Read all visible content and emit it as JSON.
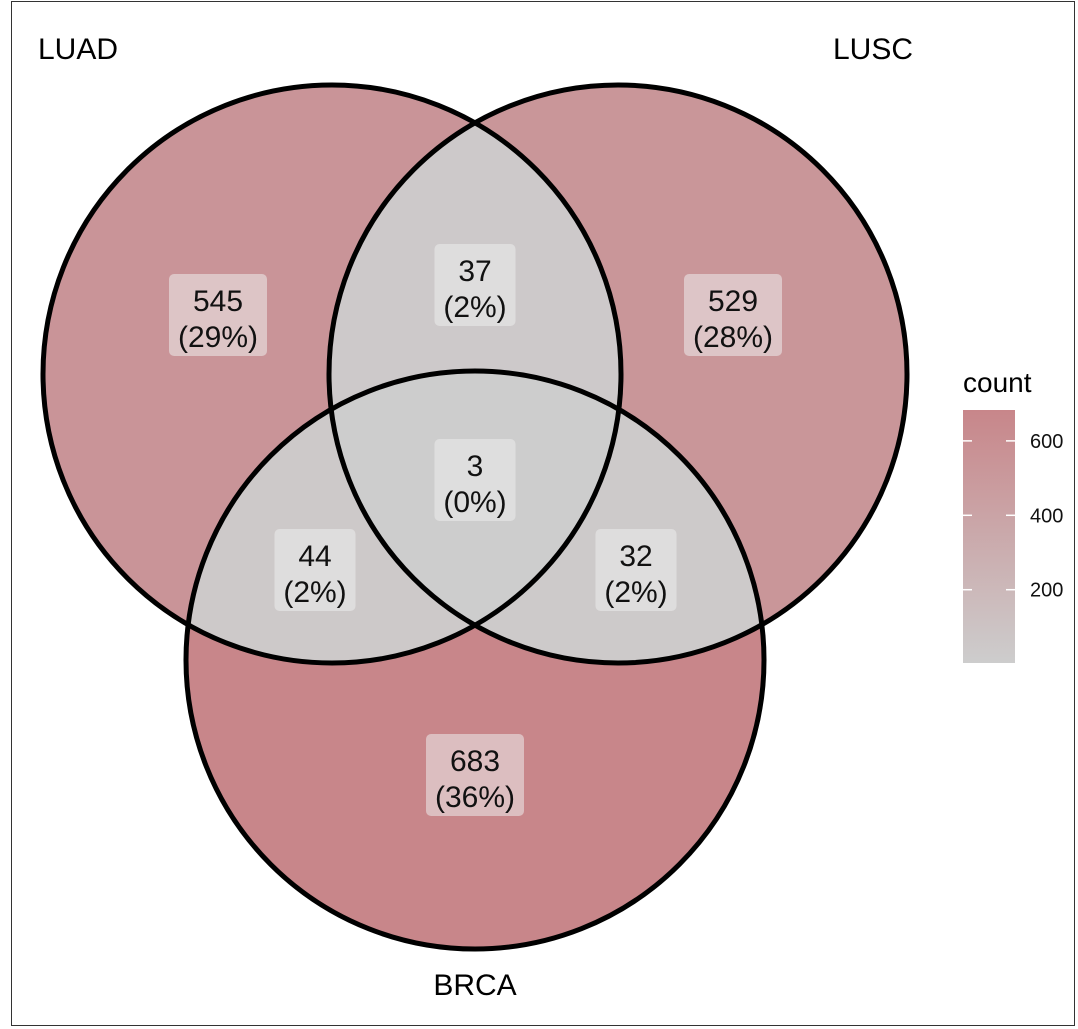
{
  "colors": {
    "high": "#c8868a",
    "low": "#cdcdcd",
    "outline": "#000000",
    "label_box": "#ececec"
  },
  "chart_data": {
    "type": "venn",
    "sets": [
      "LUAD",
      "LUSC",
      "BRCA"
    ],
    "regions": [
      {
        "sets": [
          "LUAD"
        ],
        "count": 545,
        "percent": "29%"
      },
      {
        "sets": [
          "LUSC"
        ],
        "count": 529,
        "percent": "28%"
      },
      {
        "sets": [
          "BRCA"
        ],
        "count": 683,
        "percent": "36%"
      },
      {
        "sets": [
          "LUAD",
          "LUSC"
        ],
        "count": 37,
        "percent": "2%"
      },
      {
        "sets": [
          "LUAD",
          "BRCA"
        ],
        "count": 44,
        "percent": "2%"
      },
      {
        "sets": [
          "LUSC",
          "BRCA"
        ],
        "count": 32,
        "percent": "2%"
      },
      {
        "sets": [
          "LUAD",
          "LUSC",
          "BRCA"
        ],
        "count": 3,
        "percent": "0%"
      }
    ],
    "legend": {
      "title": "count",
      "ticks": [
        200,
        400,
        600
      ],
      "range": [
        3,
        683
      ],
      "placement": "right"
    }
  }
}
